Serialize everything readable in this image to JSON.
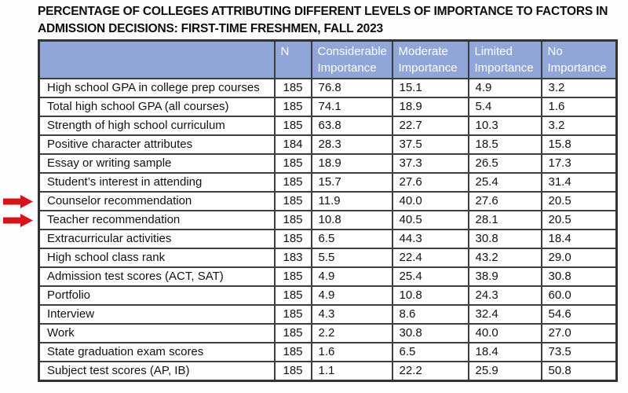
{
  "page": {
    "background": "#fdfdfd"
  },
  "title": "PERCENTAGE OF COLLEGES ATTRIBUTING DIFFERENT LEVELS OF IMPORTANCE TO FACTORS IN\nADMISSION DECISIONS: FIRST-TIME FRESHMEN, FALL 2023",
  "colors": {
    "header_bg": "#90a5d8",
    "header_text": "#ffffff",
    "cell_border": "#3d3d3d",
    "outer_border": "#333333",
    "arrow_red": "#d6121b",
    "body_text": "#111111",
    "page_bg": "#fdfdfd"
  },
  "chart_data": {
    "type": "table",
    "title": "PERCENTAGE OF COLLEGES ATTRIBUTING DIFFERENT LEVELS OF IMPORTANCE TO FACTORS IN ADMISSION DECISIONS: FIRST-TIME FRESHMEN, FALL 2023",
    "columns": [
      "",
      "N",
      "Considerable Importance",
      "Moderate Importance",
      "Limited Importance",
      "No Importance"
    ],
    "rows": [
      [
        "High school GPA in college prep courses",
        "185",
        "76.8",
        "15.1",
        "4.9",
        "3.2"
      ],
      [
        "Total high school GPA (all courses)",
        "185",
        "74.1",
        "18.9",
        "5.4",
        "1.6"
      ],
      [
        "Strength of high school curriculum",
        "185",
        "63.8",
        "22.7",
        "10.3",
        "3.2"
      ],
      [
        "Positive character attributes",
        "184",
        "28.3",
        "37.5",
        "18.5",
        "15.8"
      ],
      [
        "Essay or writing sample",
        "185",
        "18.9",
        "37.3",
        "26.5",
        "17.3"
      ],
      [
        "Student’s interest in attending",
        "185",
        "15.7",
        "27.6",
        "25.4",
        "31.4"
      ],
      [
        "Counselor recommendation",
        "185",
        "11.9",
        "40.0",
        "27.6",
        "20.5"
      ],
      [
        "Teacher recommendation",
        "185",
        "10.8",
        "40.5",
        "28.1",
        "20.5"
      ],
      [
        "Extracurricular activities",
        "185",
        "6.5",
        "44.3",
        "30.8",
        "18.4"
      ],
      [
        "High school class rank",
        "183",
        "5.5",
        "22.4",
        "43.2",
        "29.0"
      ],
      [
        "Admission test scores (ACT, SAT)",
        "185",
        "4.9",
        "25.4",
        "38.9",
        "30.8"
      ],
      [
        "Portfolio",
        "185",
        "4.9",
        "10.8",
        "24.3",
        "60.0"
      ],
      [
        "Interview",
        "185",
        "4.3",
        "8.6",
        "32.4",
        "54.6"
      ],
      [
        "Work",
        "185",
        "2.2",
        "30.8",
        "40.0",
        "27.0"
      ],
      [
        "State graduation exam scores",
        "185",
        "1.6",
        "6.5",
        "18.4",
        "73.5"
      ],
      [
        "Subject test scores (AP, IB)",
        "185",
        "1.1",
        "22.2",
        "25.9",
        "50.8"
      ]
    ],
    "highlighted_rows": [
      "Counselor recommendation",
      "Teacher recommendation"
    ],
    "arrow_row_indexes": [
      6,
      7
    ],
    "legend_position": "none",
    "grid": true
  }
}
